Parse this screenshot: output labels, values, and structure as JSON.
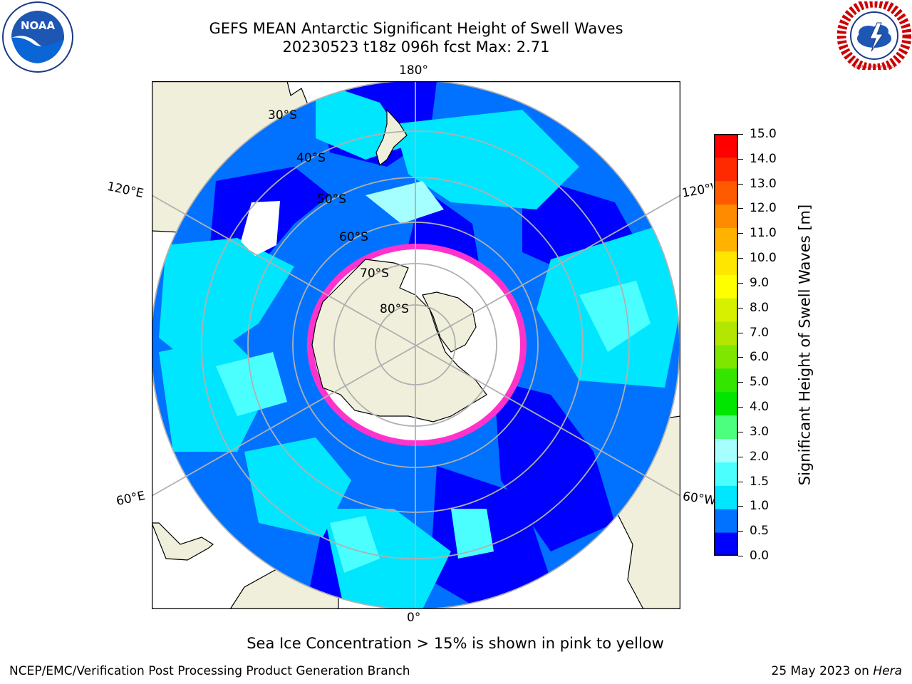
{
  "title": {
    "line1": "GEFS MEAN Antarctic Significant Height of Swell Waves",
    "line2": "20230523 t18z 096h fcst   Max: 2.71"
  },
  "map": {
    "longitude_labels": {
      "top": "180°",
      "bottom": "0°",
      "upper_left": "120°E",
      "lower_left": "60°E",
      "upper_right": "120°W",
      "lower_right": "60°W"
    },
    "latitude_labels": [
      "30°S",
      "40°S",
      "50°S",
      "60°S",
      "70°S",
      "80°S"
    ]
  },
  "colorbar": {
    "title": "Significant Height of Swell Waves [m]",
    "ticks": [
      "0.0",
      "0.5",
      "1.0",
      "1.5",
      "2.0",
      "3.0",
      "4.0",
      "5.0",
      "6.0",
      "7.0",
      "8.0",
      "9.0",
      "10.0",
      "11.0",
      "12.0",
      "13.0",
      "14.0",
      "15.0"
    ],
    "colors": [
      "#0000ff",
      "#0072ff",
      "#00e6ff",
      "#4cffff",
      "#a6ffff",
      "#4cff7f",
      "#00e600",
      "#33e600",
      "#7fe600",
      "#b3e600",
      "#d6f000",
      "#ffff00",
      "#ffe600",
      "#ffb300",
      "#ff8c00",
      "#ff5a00",
      "#ff2a00",
      "#ff0000"
    ]
  },
  "footnote": "Sea Ice Concentration > 15% is shown in pink to yellow",
  "credit": "NCEP/EMC/Verification Post Processing Product Generation Branch",
  "date_prefix": "25 May 2023 on",
  "host": "Hera",
  "logos": {
    "left_text": "NOAA",
    "right_text": "NATIONAL WEATHER SERVICE"
  }
}
